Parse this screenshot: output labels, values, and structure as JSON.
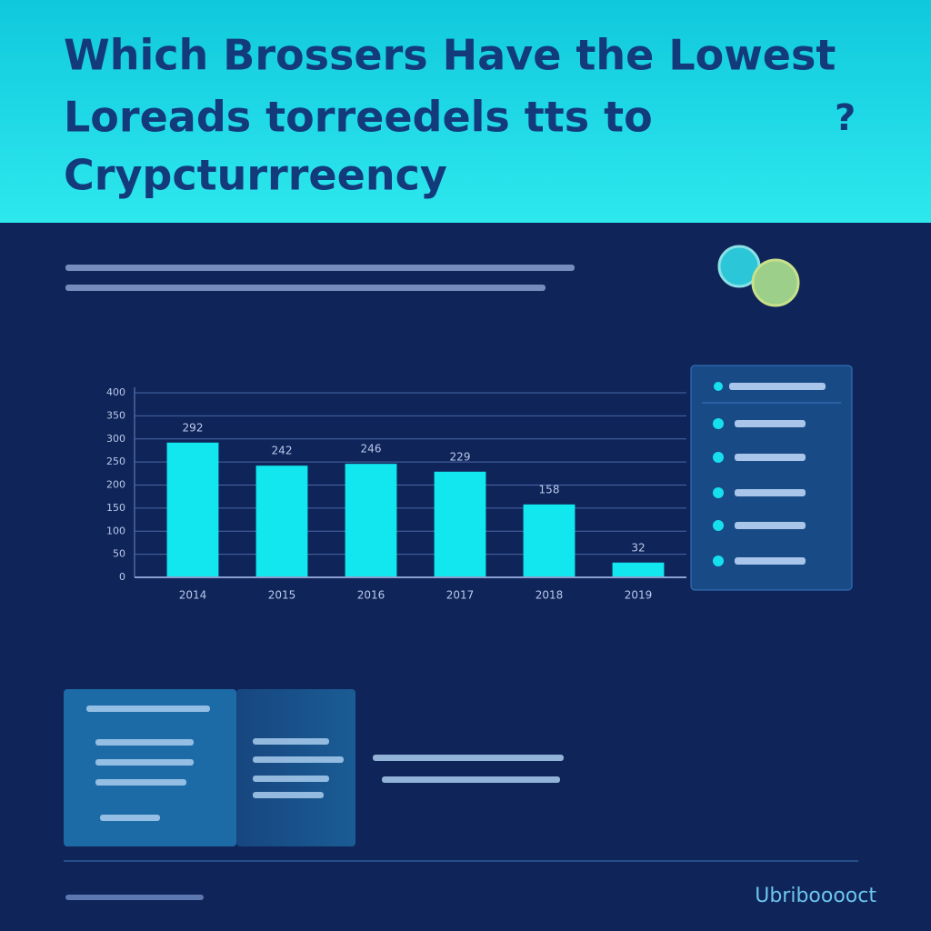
{
  "header": {
    "title_lines": [
      "Which Brossers Have the Lowest",
      "Loreads torreedels tts to",
      "Crypcturrreency"
    ],
    "question_mark": "?"
  },
  "chart_data": {
    "type": "bar",
    "categories": [
      "2014",
      "2015",
      "2016",
      "2017",
      "2018",
      "2019"
    ],
    "values": [
      292,
      242,
      246,
      229,
      158,
      32
    ],
    "color": "#12e6ee",
    "ylim": [
      0,
      400
    ],
    "yticks": [
      0,
      50,
      100,
      150,
      200,
      250,
      300,
      350,
      400
    ],
    "grid": true
  },
  "footer": {
    "brand": "Ubribooooct"
  }
}
